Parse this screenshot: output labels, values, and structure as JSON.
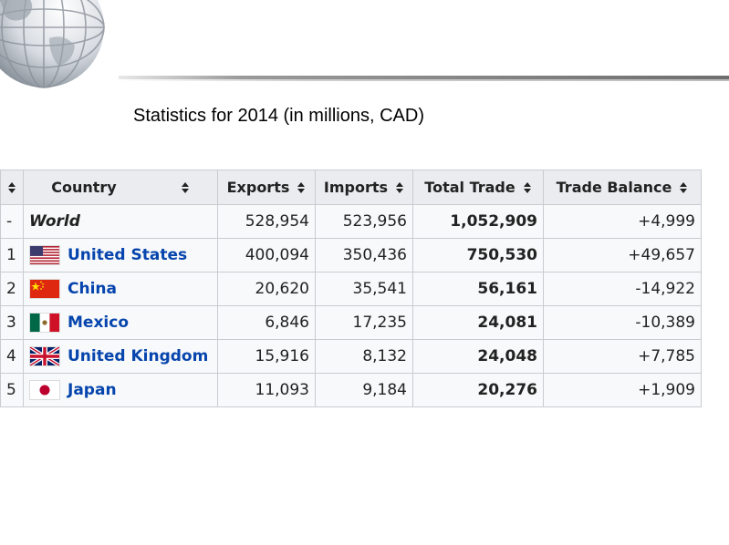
{
  "title": "Statistics for 2014 (in millions, CAD)",
  "colors": {
    "header_bg": "#eaecf0",
    "cell_bg": "#f8f9fa",
    "border": "#c8ccd1",
    "link": "#0645ad"
  },
  "table": {
    "headers": {
      "country": "Country",
      "exports": "Exports",
      "imports": "Imports",
      "total": "Total Trade",
      "balance": "Trade Balance"
    },
    "rows": [
      {
        "rank": "-",
        "country": "World",
        "flag": "none",
        "exports": "528,954",
        "imports": "523,956",
        "total": "1,052,909",
        "balance": "+4,999"
      },
      {
        "rank": "1",
        "country": "United States",
        "flag": "us-flag-icon",
        "exports": "400,094",
        "imports": "350,436",
        "total": "750,530",
        "balance": "+49,657"
      },
      {
        "rank": "2",
        "country": "China",
        "flag": "china-flag-icon",
        "exports": "20,620",
        "imports": "35,541",
        "total": "56,161",
        "balance": "-14,922"
      },
      {
        "rank": "3",
        "country": "Mexico",
        "flag": "mexico-flag-icon",
        "exports": "6,846",
        "imports": "17,235",
        "total": "24,081",
        "balance": "-10,389"
      },
      {
        "rank": "4",
        "country": "United Kingdom",
        "flag": "uk-flag-icon",
        "exports": "15,916",
        "imports": "8,132",
        "total": "24,048",
        "balance": "+7,785"
      },
      {
        "rank": "5",
        "country": "Japan",
        "flag": "japan-flag-icon",
        "exports": "11,093",
        "imports": "9,184",
        "total": "20,276",
        "balance": "+1,909"
      }
    ]
  }
}
